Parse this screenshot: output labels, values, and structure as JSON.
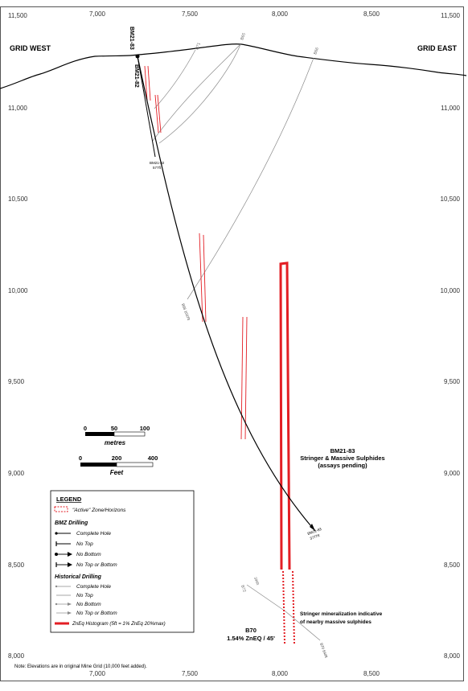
{
  "x_ticks": [
    "7,000",
    "7,500",
    "8,000",
    "8,500"
  ],
  "y_ticks": [
    "11,500",
    "11,000",
    "10,500",
    "10,000",
    "9,500",
    "9,000",
    "8,500",
    "8,000"
  ],
  "labels": {
    "grid_west": "GRID WEST",
    "grid_east": "GRID EAST",
    "bm21_83": "BM21-83",
    "bm21_82": "BM21-82",
    "bm21_82_end_a": "BM21-82",
    "bm21_82_end_b": "577ft",
    "bm21_83_end_a": "BM21-83",
    "bm21_83_end_b": "3777ft",
    "hist_b71": "B71",
    "hist_b65": "B65",
    "hist_b66": "B66",
    "hist_b66_end": "B66 1037ft",
    "hist_b72": "B72",
    "hist_b72_depth": "396ft",
    "hist_b70_end": "B70 840ft"
  },
  "annotations": {
    "bm21_83_title": "BM21-83",
    "bm21_83_line2": "Stringer & Massive Sulphides",
    "bm21_83_line3": "(assays pending)",
    "b70_title": "B70",
    "b70_value": "1.54% ZnEQ / 45'",
    "stringer_line1": "Stringer mineralization indicative",
    "stringer_line2": "of nearby massive sulphides"
  },
  "scalebar_metres": {
    "ticks": [
      "0",
      "50",
      "100"
    ],
    "unit": "metres"
  },
  "scalebar_feet": {
    "ticks": [
      "0",
      "200",
      "400"
    ],
    "unit": "Feet"
  },
  "legend": {
    "title": "LEGEND",
    "active_zone": "\"Active\" Zone/Horizons",
    "bmz_heading": "BMZ Drilling",
    "bmz_items": [
      "Complete Hole",
      "No Top",
      "No Bottom",
      "No Top or Bottom"
    ],
    "hist_heading": "Historical Drilling",
    "hist_items": [
      "Complete Hole",
      "No Top",
      "No Bottom",
      "No Top or Bottom"
    ],
    "histogram": "ZnEq Histogram (5ft = 1% ZnEq 20%max)"
  },
  "note": "Note: Elevations are in original Mine Grid (10,000 feet added).",
  "colors": {
    "drill": "#000000",
    "historical": "#8a8a8a",
    "zone": "#e31e24"
  }
}
